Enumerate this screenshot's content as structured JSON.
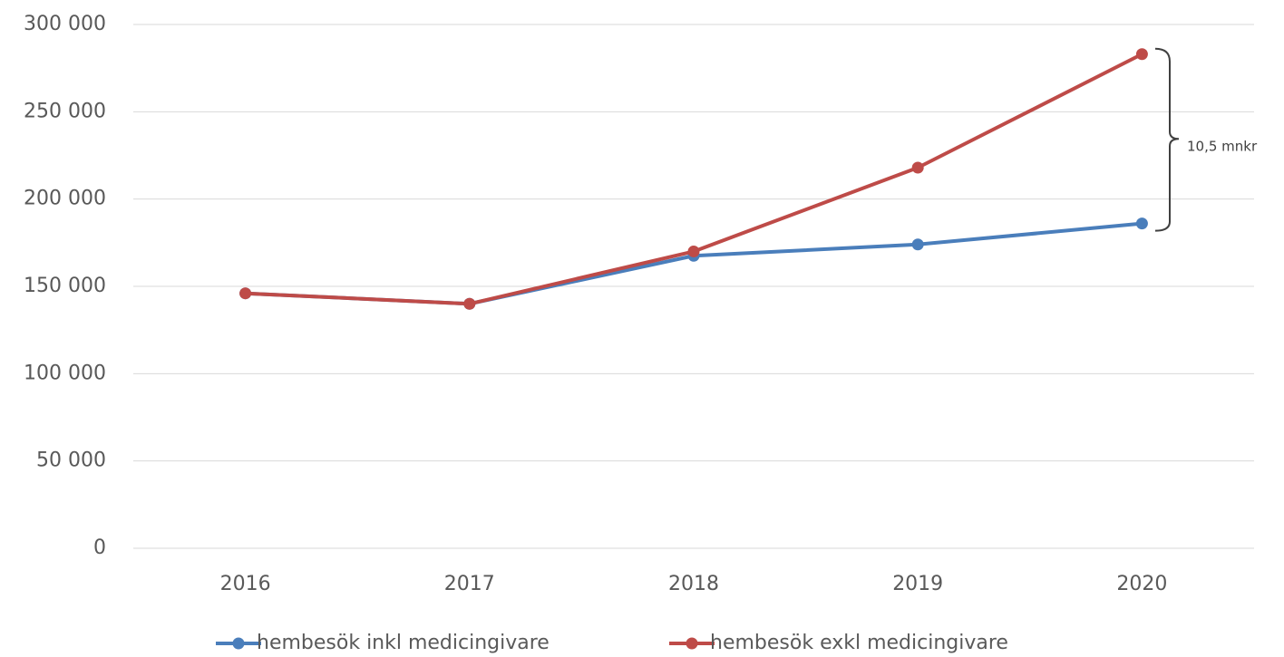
{
  "chart_data": {
    "type": "line",
    "categories": [
      "2016",
      "2017",
      "2018",
      "2019",
      "2020"
    ],
    "series": [
      {
        "name": "hembesök inkl medicingivare",
        "color": "#4a7ebb",
        "values": [
          146000,
          140000,
          167500,
          174000,
          186000
        ]
      },
      {
        "name": "hembesök exkl medicingivare",
        "color": "#be4b48",
        "values": [
          146000,
          140000,
          170000,
          218000,
          283000
        ]
      }
    ],
    "ylim": [
      0,
      300000
    ],
    "yticks": [
      {
        "value": 0,
        "label": "0"
      },
      {
        "value": 50000,
        "label": "50 000"
      },
      {
        "value": 100000,
        "label": "100 000"
      },
      {
        "value": 150000,
        "label": "150 000"
      },
      {
        "value": 200000,
        "label": "200 000"
      },
      {
        "value": 250000,
        "label": "250 000"
      },
      {
        "value": 300000,
        "label": "300 000"
      }
    ],
    "annotation": "10,5 mnkr",
    "grid": true,
    "legend": "bottom"
  }
}
